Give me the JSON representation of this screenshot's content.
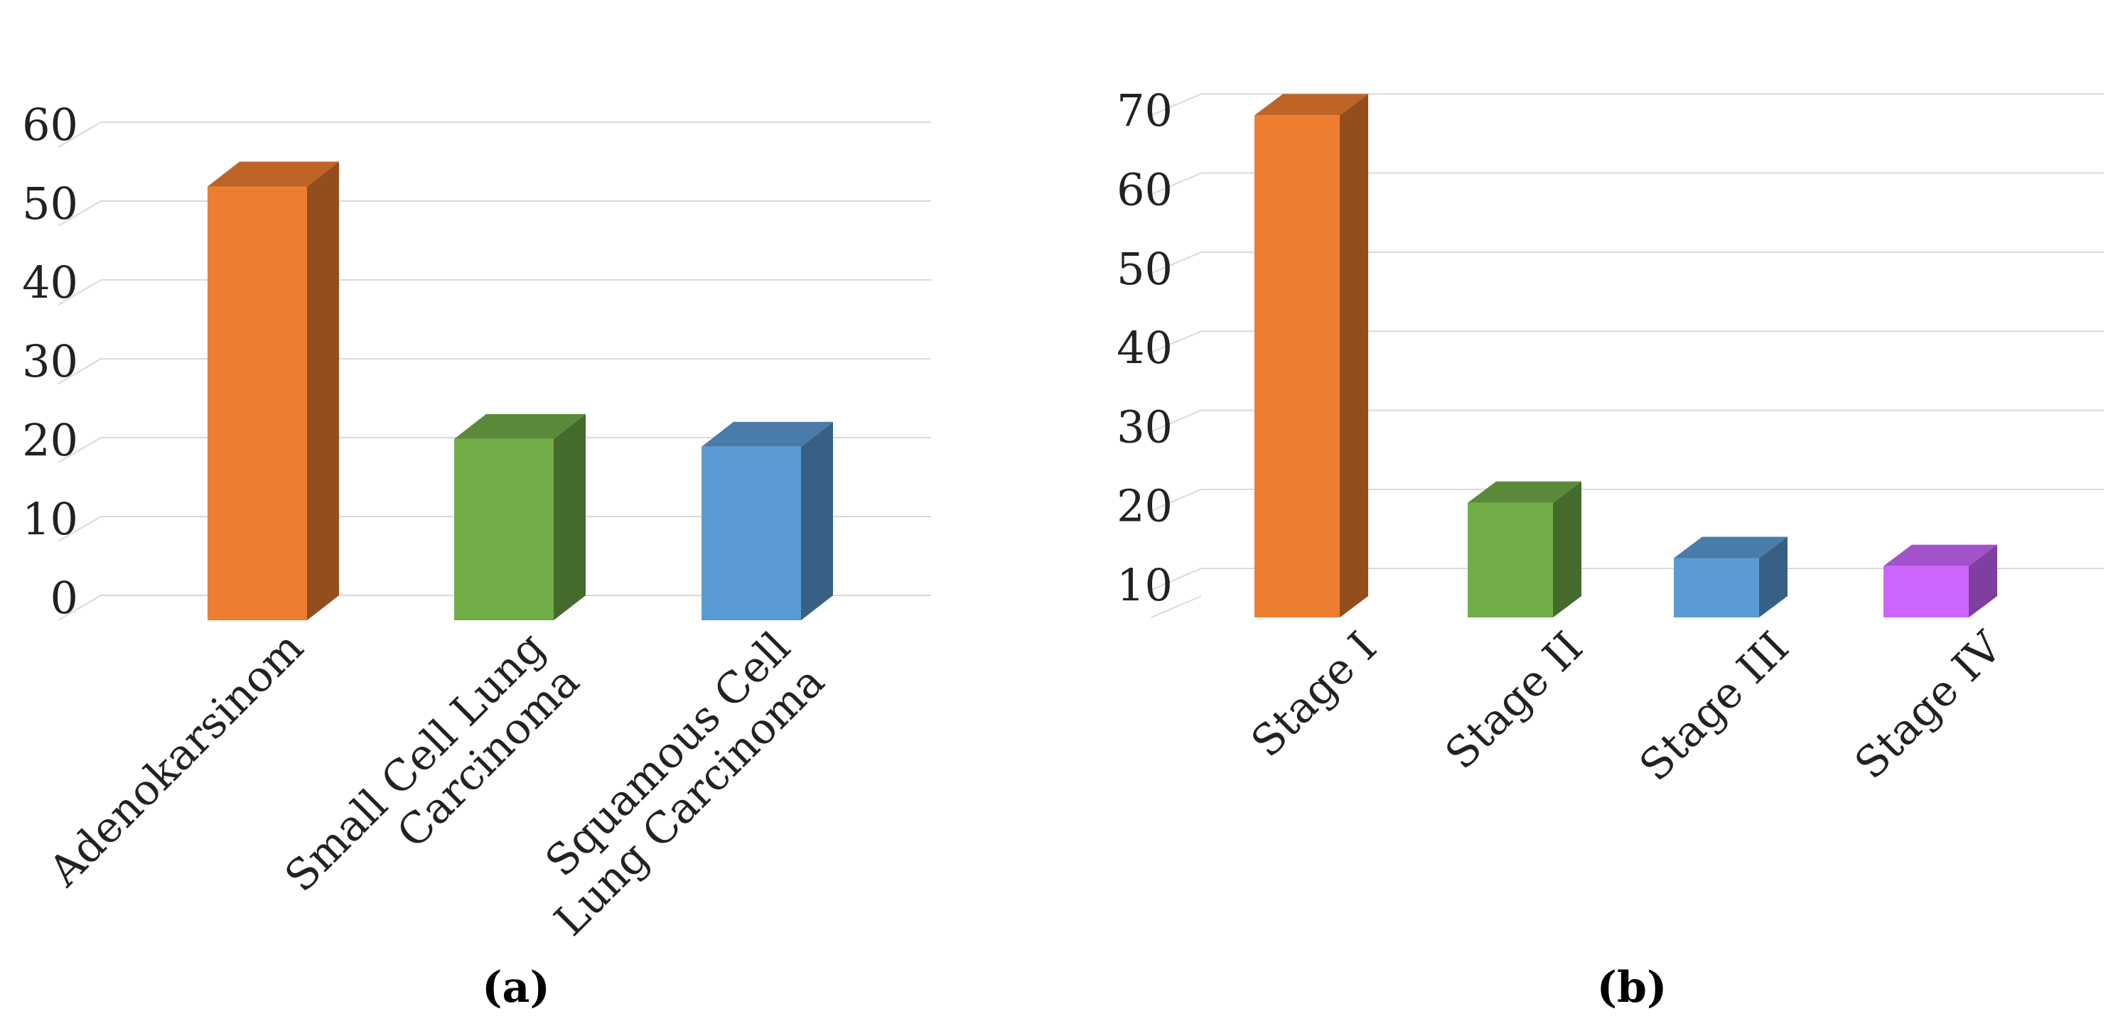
{
  "chart_data": [
    {
      "type": "bar",
      "panel_label": "(a)",
      "title": "",
      "xlabel": "",
      "ylabel": "",
      "categories": [
        [
          "Adenokarsinom"
        ],
        [
          "Small Cell Lung",
          "Carcinoma"
        ],
        [
          "Squamous Cell",
          "Lung Carcinoma"
        ]
      ],
      "values": [
        55,
        23,
        22
      ],
      "colors": [
        "#ED7D31",
        "#70AD47",
        "#5B9BD5"
      ],
      "ylim": [
        0,
        60
      ],
      "yticks": [
        "0",
        "10",
        "20",
        "30",
        "40",
        "50",
        "60"
      ],
      "grid": true,
      "style": "3d-column"
    },
    {
      "type": "bar",
      "panel_label": "(b)",
      "title": "",
      "xlabel": "",
      "ylabel": "",
      "categories": [
        [
          "Stage I"
        ],
        [
          "Stage II"
        ],
        [
          "Stage III"
        ],
        [
          "Stage IV"
        ]
      ],
      "values": [
        70,
        21,
        14,
        13
      ],
      "colors": [
        "#ED7D31",
        "#70AD47",
        "#5B9BD5",
        "#CC66FF"
      ],
      "ylim": [
        6.5,
        77
      ],
      "yticks": [
        "10",
        "20",
        "30",
        "40",
        "50",
        "60",
        "70"
      ],
      "ytick_values": [
        10,
        20,
        30,
        40,
        50,
        60,
        70
      ],
      "grid": true,
      "style": "3d-column"
    }
  ]
}
